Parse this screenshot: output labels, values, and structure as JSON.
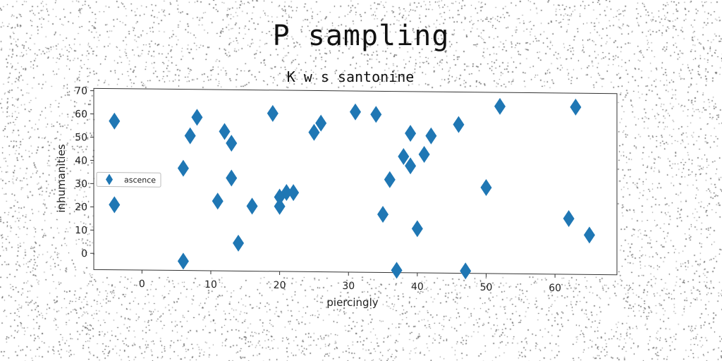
{
  "figure": {
    "title": "P sampling"
  },
  "chart_data": {
    "type": "scatter",
    "title": "K w s santonine",
    "xlabel": "piercingly",
    "ylabel": "inhumanities",
    "xlim": [
      -7,
      69
    ],
    "ylim": [
      -7,
      71
    ],
    "xticks": [
      0,
      10,
      20,
      30,
      40,
      50,
      60
    ],
    "yticks": [
      0,
      10,
      20,
      30,
      40,
      50,
      60,
      70
    ],
    "grid": false,
    "legend_position": "center-left",
    "series": [
      {
        "name": "ascence",
        "marker": "diamond",
        "color": "#1f77b4",
        "x": [
          -4,
          -4,
          6,
          6,
          7,
          8,
          11,
          12,
          13,
          13,
          14,
          16,
          19,
          20,
          20,
          21,
          22,
          25,
          26,
          31,
          34,
          35,
          36,
          37,
          38,
          39,
          39,
          40,
          41,
          42,
          46,
          47,
          50,
          52,
          62,
          63,
          65
        ],
        "y": [
          57,
          21,
          37,
          -3,
          51,
          59,
          23,
          53,
          48,
          33,
          5,
          21,
          61,
          21,
          25,
          27,
          27,
          53,
          57,
          62,
          61,
          18,
          33,
          -6,
          43,
          39,
          53,
          12,
          44,
          52,
          57,
          -6,
          30,
          65,
          17,
          65,
          10
        ]
      }
    ]
  },
  "colors": {
    "marker": "#1f77b4",
    "axes": "#333333"
  }
}
